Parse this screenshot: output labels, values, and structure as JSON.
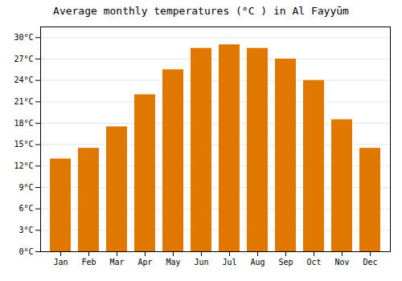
{
  "chart_data": {
    "type": "bar",
    "title": "Average monthly temperatures (°C ) in Al Fayyūm",
    "categories": [
      "Jan",
      "Feb",
      "Mar",
      "Apr",
      "May",
      "Jun",
      "Jul",
      "Aug",
      "Sep",
      "Oct",
      "Nov",
      "Dec"
    ],
    "values": [
      13,
      14.5,
      17.5,
      22,
      25.5,
      28.5,
      29,
      28.5,
      27,
      24,
      18.5,
      14.5
    ],
    "color": "#E07800",
    "ylim": [
      0,
      31.5
    ],
    "yticks": [
      {
        "value": 0,
        "label": "0°C"
      },
      {
        "value": 3,
        "label": "3°C"
      },
      {
        "value": 6,
        "label": "6°C"
      },
      {
        "value": 9,
        "label": "9°C"
      },
      {
        "value": 12,
        "label": "12°C"
      },
      {
        "value": 15,
        "label": "15°C"
      },
      {
        "value": 18,
        "label": "18°C"
      },
      {
        "value": 21,
        "label": "21°C"
      },
      {
        "value": 24,
        "label": "24°C"
      },
      {
        "value": 27,
        "label": "27°C"
      },
      {
        "value": 30,
        "label": "30°C"
      }
    ],
    "grid": true
  }
}
